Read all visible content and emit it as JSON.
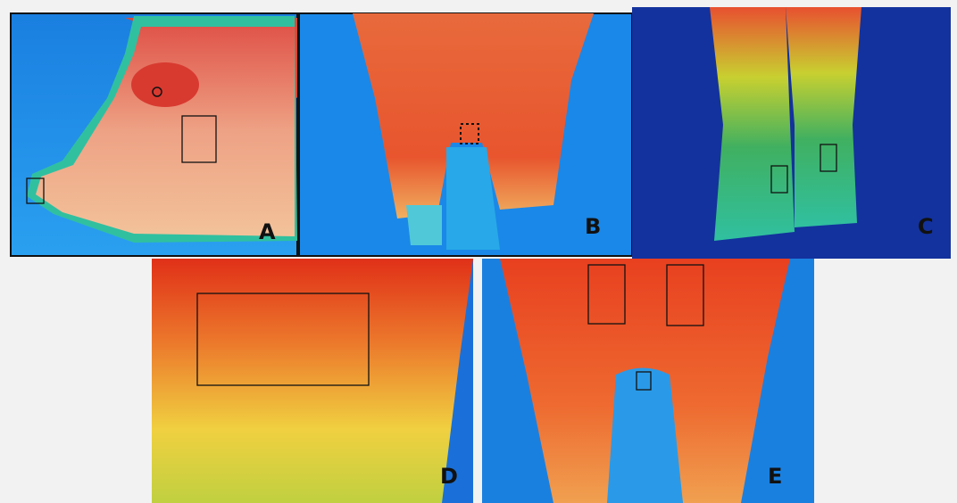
{
  "panels": [
    {
      "label": "A"
    },
    {
      "label": "B"
    },
    {
      "label": "C"
    },
    {
      "label": "D"
    },
    {
      "label": "E"
    }
  ]
}
